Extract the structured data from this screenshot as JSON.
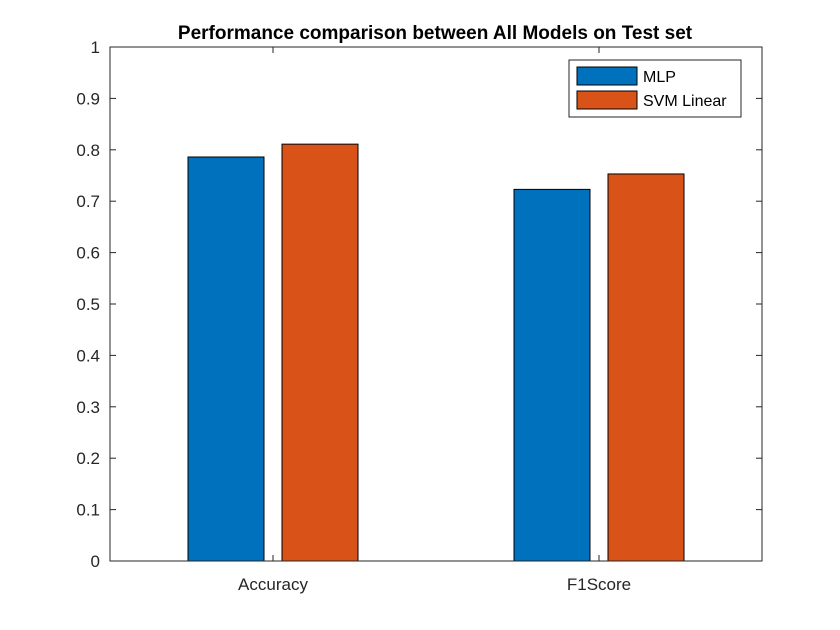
{
  "chart_data": {
    "type": "bar",
    "title": "Performance comparison between All Models on Test set",
    "xlabel": "",
    "ylabel": "",
    "categories": [
      "Accuracy",
      "F1Score"
    ],
    "series": [
      {
        "name": "MLP",
        "color": "#0072BD",
        "values": [
          0.786,
          0.723
        ]
      },
      {
        "name": "SVM Linear",
        "color": "#D95319",
        "values": [
          0.811,
          0.753
        ]
      }
    ],
    "ylim": [
      0,
      1
    ],
    "yticks": [
      "0",
      "0.1",
      "0.2",
      "0.3",
      "0.4",
      "0.5",
      "0.6",
      "0.7",
      "0.8",
      "0.9",
      "1"
    ],
    "grid": false,
    "legend_position": "top-right"
  }
}
